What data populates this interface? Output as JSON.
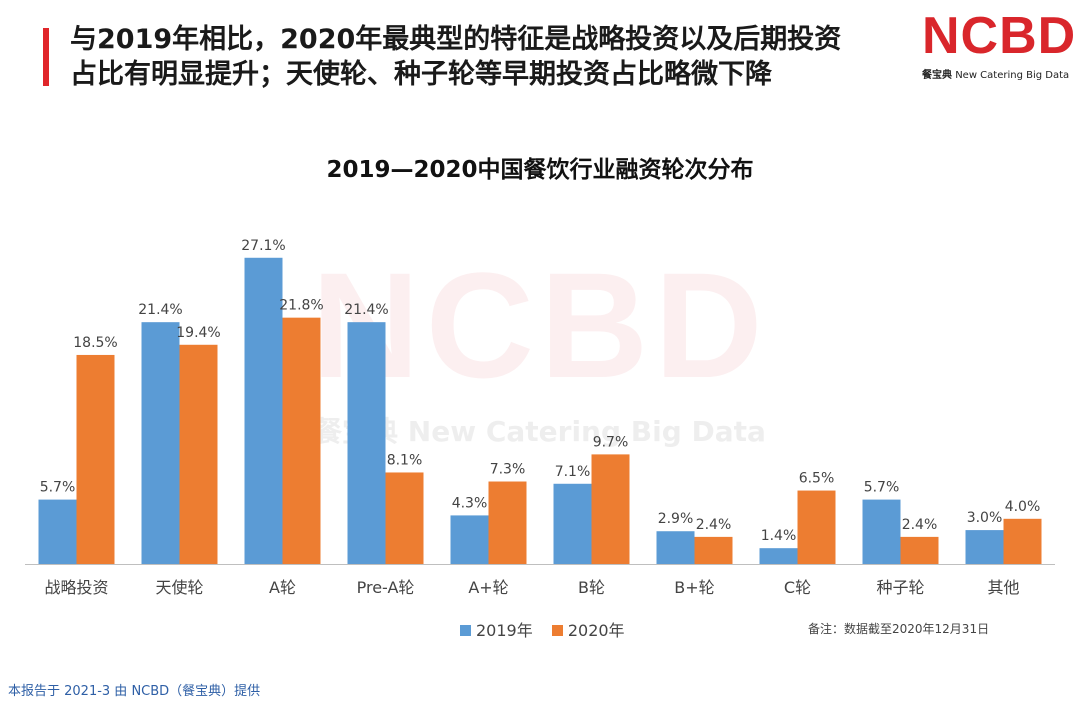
{
  "headline": {
    "line1": "与2019年相比，2020年最典型的特征是战略投资以及后期投资",
    "line2": "占比有明显提升；天使轮、种子轮等早期投资占比略微下降"
  },
  "logo": {
    "mark": "NCBD",
    "sub_cn": "餐宝典",
    "sub_en": "New Catering Big Data"
  },
  "watermark": {
    "mark": "NCBD",
    "text": "餐宝典  New Catering Big Data"
  },
  "legend": {
    "s2019": "2019年",
    "s2020": "2020年"
  },
  "note": "备注：数据截至2020年12月31日",
  "footer": "本报告于 2021-3 由 NCBD（餐宝典）提供",
  "colors": {
    "s2019": "#5b9bd5",
    "s2020": "#ed7d31",
    "accent": "#e0262a"
  },
  "chart_data": {
    "type": "bar",
    "title": "2019—2020中国餐饮行业融资轮次分布",
    "xlabel": "",
    "ylabel": "",
    "ylim": [
      0,
      28
    ],
    "grid": false,
    "legend_position": "bottom",
    "categories": [
      "战略投资",
      "天使轮",
      "A轮",
      "Pre-A轮",
      "A+轮",
      "B轮",
      "B+轮",
      "C轮",
      "种子轮",
      "其他"
    ],
    "series": [
      {
        "name": "2019年",
        "values": [
          5.7,
          21.4,
          27.1,
          21.4,
          4.3,
          7.1,
          2.9,
          1.4,
          5.7,
          3.0
        ],
        "labels": [
          "5.7%",
          "21.4%",
          "27.1%",
          "21.4%",
          "4.3%",
          "7.1%",
          "2.9%",
          "1.4%",
          "5.7%",
          "3.0%"
        ]
      },
      {
        "name": "2020年",
        "values": [
          18.5,
          19.4,
          21.8,
          8.1,
          7.3,
          9.7,
          2.4,
          6.5,
          2.4,
          4.0
        ],
        "labels": [
          "18.5%",
          "19.4%",
          "21.8%",
          "8.1%",
          "7.3%",
          "9.7%",
          "2.4%",
          "6.5%",
          "2.4%",
          "4.0%"
        ]
      }
    ]
  }
}
